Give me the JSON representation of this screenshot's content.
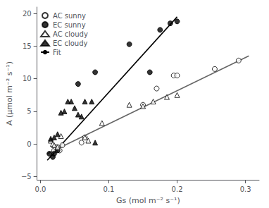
{
  "chart_data": {
    "type": "scatter",
    "xlabel": "Gs (mol m⁻² s⁻¹)",
    "ylabel": "A (μmol m⁻² s⁻¹)",
    "xlim": [
      -0.005,
      0.32
    ],
    "ylim": [
      -5.5,
      21
    ],
    "xticks": [
      {
        "value": 0.0,
        "label": "0.0"
      },
      0.1,
      0.2,
      0.3
    ],
    "yticks": [
      {
        "value": -5,
        "label": "−5"
      },
      0,
      5,
      10,
      15,
      20
    ],
    "grid": false,
    "legend": "upper left",
    "series": [
      {
        "name": "AC sunny",
        "type": "scatter",
        "marker": "circle",
        "color": "#ffffff",
        "x": [
          0.02,
          0.022,
          0.025,
          0.028,
          0.032,
          0.06,
          0.065,
          0.15,
          0.17,
          0.195,
          0.2,
          0.255,
          0.29
        ],
        "values": [
          -1.0,
          -0.5,
          -0.5,
          -1.0,
          -0.2,
          0.2,
          1.0,
          6.0,
          8.5,
          10.5,
          10.5,
          11.5,
          12.8
        ]
      },
      {
        "name": "EC sunny",
        "type": "scatter",
        "marker": "circle",
        "color": "#000000",
        "x": [
          0.013,
          0.018,
          0.02,
          0.025,
          0.055,
          0.08,
          0.13,
          0.16,
          0.175,
          0.19,
          0.2
        ],
        "values": [
          -1.5,
          -2.0,
          -1.5,
          -1.0,
          9.2,
          11.0,
          15.3,
          11.0,
          17.5,
          18.5,
          18.8
        ]
      },
      {
        "name": "AC cloudy",
        "type": "scatter",
        "marker": "triangle",
        "color": "#ffffff",
        "x": [
          0.015,
          0.018,
          0.02,
          0.025,
          0.03,
          0.065,
          0.07,
          0.09,
          0.13,
          0.15,
          0.165,
          0.185,
          0.2
        ],
        "values": [
          0.5,
          0.0,
          -0.2,
          -0.5,
          1.2,
          1.0,
          0.5,
          3.2,
          6.0,
          5.8,
          6.5,
          7.2,
          7.5
        ]
      },
      {
        "name": "EC cloudy",
        "type": "scatter",
        "marker": "triangle",
        "color": "#000000",
        "x": [
          0.015,
          0.02,
          0.025,
          0.03,
          0.035,
          0.04,
          0.045,
          0.05,
          0.055,
          0.06,
          0.065,
          0.075,
          0.08
        ],
        "values": [
          0.8,
          1.0,
          1.5,
          4.8,
          5.0,
          6.5,
          6.5,
          5.5,
          4.5,
          4.2,
          6.5,
          6.5,
          0.2
        ]
      },
      {
        "name": "Fit",
        "type": "line",
        "color": "#000000",
        "x": [
          0.01,
          0.2
        ],
        "values": [
          -2.5,
          19.5
        ]
      },
      {
        "name": "Fit",
        "type": "line",
        "color": "#666666",
        "x": [
          0.01,
          0.305
        ],
        "values": [
          -1.5,
          13.5
        ]
      }
    ]
  }
}
